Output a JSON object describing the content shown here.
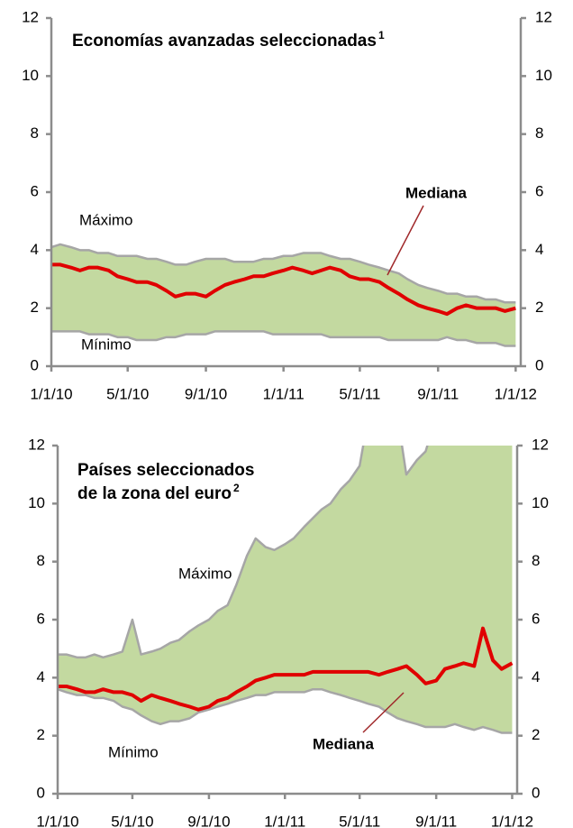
{
  "chart_data": [
    {
      "type": "band-line",
      "title": "Economías avanzadas seleccionadas",
      "title_note": "1",
      "x": [
        "1/1/10",
        "1/15/10",
        "2/1/10",
        "2/15/10",
        "3/1/10",
        "3/15/10",
        "4/1/10",
        "4/15/10",
        "5/1/10",
        "5/15/10",
        "6/1/10",
        "6/15/10",
        "7/1/10",
        "7/15/10",
        "8/1/10",
        "8/15/10",
        "9/1/10",
        "9/15/10",
        "10/1/10",
        "10/15/10",
        "11/1/10",
        "11/15/10",
        "12/1/10",
        "12/15/10",
        "1/1/11",
        "1/15/11",
        "2/1/11",
        "2/15/11",
        "3/1/11",
        "3/15/11",
        "4/1/11",
        "4/15/11",
        "5/1/11",
        "5/15/11",
        "6/1/11",
        "6/15/11",
        "7/1/11",
        "7/15/11",
        "8/1/11",
        "8/15/11",
        "9/1/11",
        "9/15/11",
        "10/1/11",
        "10/15/11",
        "11/1/11",
        "11/15/11",
        "12/1/11",
        "12/15/11",
        "1/1/12"
      ],
      "series": [
        {
          "name": "Máximo",
          "color": "#a6a6a6",
          "values": [
            4.1,
            4.2,
            4.1,
            4.0,
            4.0,
            3.9,
            3.9,
            3.8,
            3.8,
            3.8,
            3.7,
            3.7,
            3.6,
            3.5,
            3.5,
            3.6,
            3.7,
            3.7,
            3.7,
            3.6,
            3.6,
            3.6,
            3.7,
            3.7,
            3.8,
            3.8,
            3.9,
            3.9,
            3.9,
            3.8,
            3.7,
            3.7,
            3.6,
            3.5,
            3.4,
            3.3,
            3.2,
            3.0,
            2.8,
            2.7,
            2.6,
            2.5,
            2.5,
            2.4,
            2.4,
            2.3,
            2.3,
            2.2,
            2.2
          ]
        },
        {
          "name": "Mínimo",
          "color": "#a6a6a6",
          "values": [
            1.2,
            1.2,
            1.2,
            1.2,
            1.1,
            1.1,
            1.1,
            1.0,
            1.0,
            0.9,
            0.9,
            0.9,
            1.0,
            1.0,
            1.1,
            1.1,
            1.1,
            1.2,
            1.2,
            1.2,
            1.2,
            1.2,
            1.2,
            1.1,
            1.1,
            1.1,
            1.1,
            1.1,
            1.1,
            1.0,
            1.0,
            1.0,
            1.0,
            1.0,
            1.0,
            0.9,
            0.9,
            0.9,
            0.9,
            0.9,
            0.9,
            1.0,
            0.9,
            0.9,
            0.8,
            0.8,
            0.8,
            0.7,
            0.7
          ]
        },
        {
          "name": "Mediana",
          "color": "#e00000",
          "values": [
            3.5,
            3.5,
            3.4,
            3.3,
            3.4,
            3.4,
            3.3,
            3.1,
            3.0,
            2.9,
            2.9,
            2.8,
            2.6,
            2.4,
            2.5,
            2.5,
            2.4,
            2.6,
            2.8,
            2.9,
            3.0,
            3.1,
            3.1,
            3.2,
            3.3,
            3.4,
            3.3,
            3.2,
            3.3,
            3.4,
            3.3,
            3.1,
            3.0,
            3.0,
            2.9,
            2.7,
            2.5,
            2.3,
            2.1,
            2.0,
            1.9,
            1.8,
            2.0,
            2.1,
            2.0,
            2.0,
            2.0,
            1.9,
            2.0
          ]
        }
      ],
      "band_color": "#c3d9a0",
      "xlim": [
        "1/1/10",
        "1/9/12"
      ],
      "xticks": [
        "1/1/10",
        "5/1/10",
        "9/1/10",
        "1/1/11",
        "5/1/11",
        "9/1/11",
        "1/1/12"
      ],
      "ylim": [
        0,
        12
      ],
      "yticks": [
        0,
        2,
        4,
        6,
        8,
        10,
        12
      ]
    },
    {
      "type": "band-line",
      "title": [
        "Países seleccionados",
        "de la zona del euro"
      ],
      "title_note": "2",
      "x": [
        "1/1/10",
        "1/15/10",
        "2/1/10",
        "2/15/10",
        "3/1/10",
        "3/15/10",
        "4/1/10",
        "4/15/10",
        "5/1/10",
        "5/15/10",
        "6/1/10",
        "6/15/10",
        "7/1/10",
        "7/15/10",
        "8/1/10",
        "8/15/10",
        "9/1/10",
        "9/15/10",
        "10/1/10",
        "10/15/10",
        "11/1/10",
        "11/15/10",
        "12/1/10",
        "12/15/10",
        "1/1/11",
        "1/15/11",
        "2/1/11",
        "2/15/11",
        "3/1/11",
        "3/15/11",
        "4/1/11",
        "4/15/11",
        "5/1/11",
        "5/15/11",
        "6/1/11",
        "6/15/11",
        "7/1/11",
        "7/15/11",
        "8/1/11",
        "8/15/11",
        "9/1/11",
        "9/15/11",
        "10/1/11",
        "10/15/11",
        "11/1/11",
        "11/15/11",
        "12/1/11",
        "12/15/11",
        "1/1/12"
      ],
      "series": [
        {
          "name": "Máximo",
          "color": "#a6a6a6",
          "values": [
            4.8,
            4.8,
            4.7,
            4.7,
            4.8,
            4.7,
            4.8,
            4.9,
            6.0,
            4.8,
            4.9,
            5.0,
            5.2,
            5.3,
            5.6,
            5.8,
            6.0,
            6.3,
            6.5,
            7.2,
            8.2,
            8.8,
            8.5,
            8.4,
            8.6,
            8.8,
            9.2,
            9.5,
            9.8,
            10.0,
            10.5,
            10.8,
            11.3,
            13,
            13,
            13,
            13,
            11.0,
            11.5,
            11.8,
            13,
            13,
            13,
            13,
            13,
            13,
            13,
            13,
            13
          ]
        },
        {
          "name": "Mínimo",
          "color": "#a6a6a6",
          "values": [
            3.6,
            3.5,
            3.4,
            3.4,
            3.3,
            3.3,
            3.2,
            3.0,
            2.9,
            2.7,
            2.5,
            2.4,
            2.5,
            2.5,
            2.6,
            2.8,
            2.9,
            3.0,
            3.1,
            3.2,
            3.3,
            3.4,
            3.4,
            3.5,
            3.5,
            3.5,
            3.5,
            3.6,
            3.6,
            3.5,
            3.4,
            3.3,
            3.2,
            3.1,
            3.0,
            2.8,
            2.6,
            2.5,
            2.4,
            2.3,
            2.3,
            2.3,
            2.4,
            2.3,
            2.2,
            2.3,
            2.2,
            2.1,
            2.1
          ]
        },
        {
          "name": "Mediana",
          "color": "#e00000",
          "values": [
            3.7,
            3.7,
            3.6,
            3.5,
            3.5,
            3.6,
            3.5,
            3.5,
            3.4,
            3.2,
            3.4,
            3.3,
            3.2,
            3.1,
            3.0,
            2.9,
            3.0,
            3.2,
            3.3,
            3.5,
            3.7,
            3.9,
            4.0,
            4.1,
            4.1,
            4.1,
            4.1,
            4.2,
            4.2,
            4.2,
            4.2,
            4.2,
            4.2,
            4.2,
            4.1,
            4.2,
            4.3,
            4.4,
            4.1,
            3.8,
            3.9,
            4.3,
            4.4,
            4.5,
            4.4,
            5.7,
            4.6,
            4.3,
            4.5
          ]
        }
      ],
      "band_color": "#c3d9a0",
      "xlim": [
        "1/1/10",
        "1/9/12"
      ],
      "xticks": [
        "1/1/10",
        "5/1/10",
        "9/1/10",
        "1/1/11",
        "5/1/11",
        "9/1/11",
        "1/1/12"
      ],
      "ylim": [
        0,
        12
      ],
      "yticks": [
        0,
        2,
        4,
        6,
        8,
        10,
        12
      ]
    }
  ]
}
